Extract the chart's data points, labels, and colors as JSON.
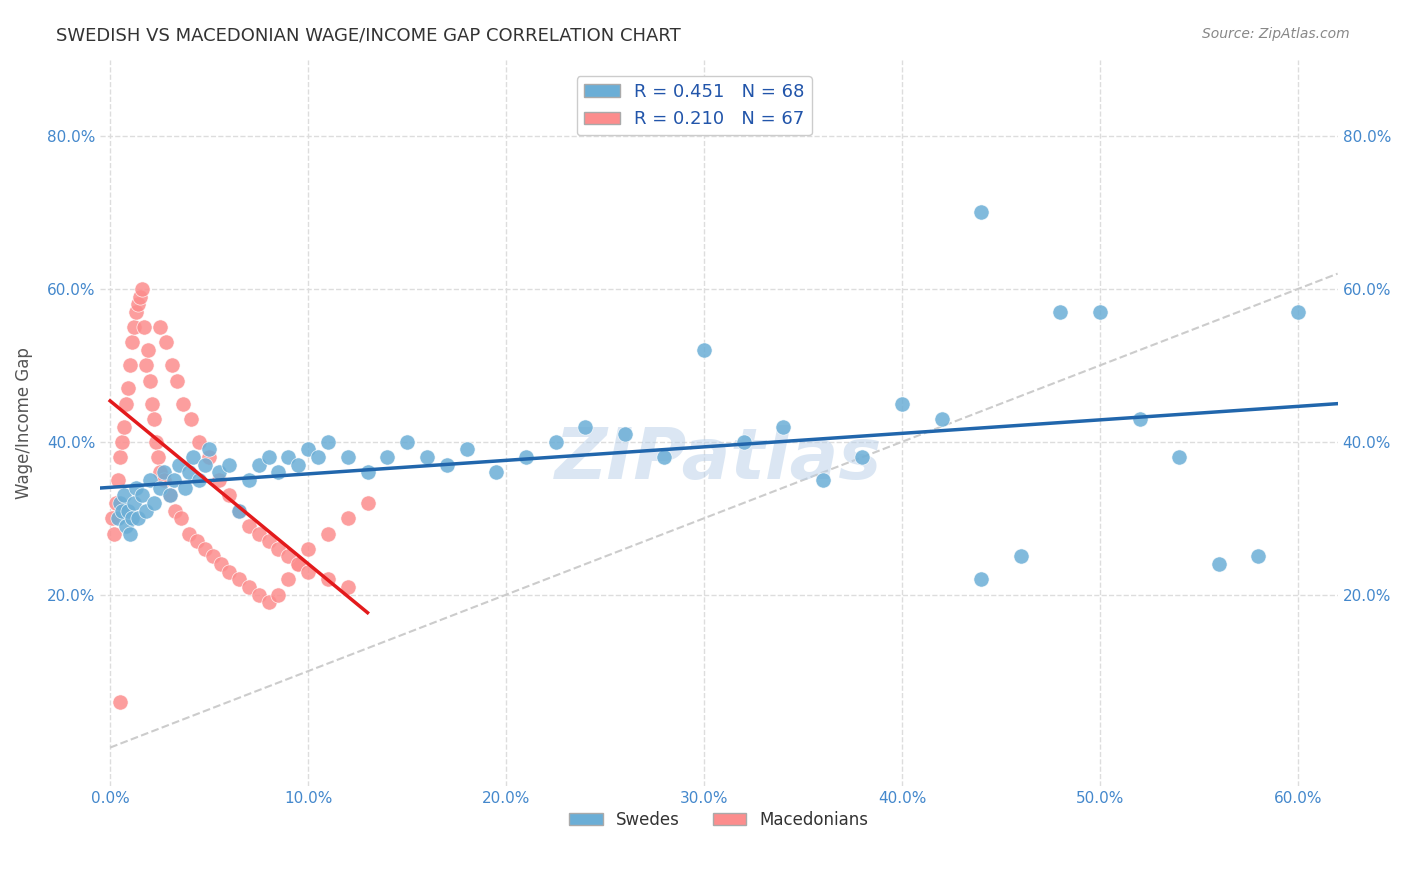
{
  "title": "SWEDISH VS MACEDONIAN WAGE/INCOME GAP CORRELATION CHART",
  "source": "Source: ZipAtlas.com",
  "ylabel": "Wage/Income Gap",
  "xlabel": "",
  "watermark": "ZIPatlas",
  "xlim": [
    -0.005,
    0.62
  ],
  "ylim": [
    -0.05,
    0.9
  ],
  "xticks": [
    0.0,
    0.1,
    0.2,
    0.3,
    0.4,
    0.5,
    0.6
  ],
  "xtick_labels": [
    "0.0%",
    "10.0%",
    "20.0%",
    "30.0%",
    "40.0%",
    "50.0%",
    "60.0%"
  ],
  "ytick_positions": [
    0.2,
    0.4,
    0.6,
    0.8
  ],
  "ytick_labels": [
    "20.0%",
    "40.0%",
    "60.0%",
    "80.0%"
  ],
  "swedes_color": "#6baed6",
  "macedonians_color": "#fc8d8d",
  "trend_blue_color": "#2166ac",
  "trend_pink_color": "#e31a1c",
  "diagonal_color": "#cccccc",
  "R_swedes": 0.451,
  "N_swedes": 68,
  "R_macedonians": 0.21,
  "N_macedonians": 67,
  "swedes_x": [
    0.004,
    0.005,
    0.006,
    0.007,
    0.008,
    0.009,
    0.01,
    0.011,
    0.012,
    0.013,
    0.014,
    0.016,
    0.018,
    0.02,
    0.022,
    0.025,
    0.027,
    0.03,
    0.032,
    0.035,
    0.038,
    0.04,
    0.042,
    0.045,
    0.048,
    0.05,
    0.055,
    0.06,
    0.065,
    0.07,
    0.075,
    0.08,
    0.085,
    0.09,
    0.095,
    0.1,
    0.105,
    0.11,
    0.12,
    0.13,
    0.14,
    0.15,
    0.16,
    0.17,
    0.18,
    0.195,
    0.21,
    0.225,
    0.24,
    0.26,
    0.28,
    0.3,
    0.32,
    0.34,
    0.36,
    0.38,
    0.4,
    0.42,
    0.44,
    0.46,
    0.48,
    0.5,
    0.52,
    0.54,
    0.56,
    0.58,
    0.6,
    0.44
  ],
  "swedes_y": [
    0.3,
    0.32,
    0.31,
    0.33,
    0.29,
    0.31,
    0.28,
    0.3,
    0.32,
    0.34,
    0.3,
    0.33,
    0.31,
    0.35,
    0.32,
    0.34,
    0.36,
    0.33,
    0.35,
    0.37,
    0.34,
    0.36,
    0.38,
    0.35,
    0.37,
    0.39,
    0.36,
    0.37,
    0.31,
    0.35,
    0.37,
    0.38,
    0.36,
    0.38,
    0.37,
    0.39,
    0.38,
    0.4,
    0.38,
    0.36,
    0.38,
    0.4,
    0.38,
    0.37,
    0.39,
    0.36,
    0.38,
    0.4,
    0.42,
    0.41,
    0.38,
    0.52,
    0.4,
    0.42,
    0.35,
    0.38,
    0.45,
    0.43,
    0.22,
    0.25,
    0.57,
    0.57,
    0.43,
    0.38,
    0.24,
    0.25,
    0.57,
    0.7
  ],
  "macedonians_x": [
    0.001,
    0.002,
    0.003,
    0.004,
    0.005,
    0.006,
    0.007,
    0.008,
    0.009,
    0.01,
    0.011,
    0.012,
    0.013,
    0.014,
    0.015,
    0.016,
    0.017,
    0.018,
    0.019,
    0.02,
    0.021,
    0.022,
    0.023,
    0.024,
    0.025,
    0.027,
    0.03,
    0.033,
    0.036,
    0.04,
    0.044,
    0.048,
    0.052,
    0.056,
    0.06,
    0.065,
    0.07,
    0.075,
    0.08,
    0.085,
    0.09,
    0.095,
    0.1,
    0.11,
    0.12,
    0.13,
    0.025,
    0.028,
    0.031,
    0.034,
    0.037,
    0.041,
    0.045,
    0.05,
    0.055,
    0.06,
    0.065,
    0.07,
    0.075,
    0.08,
    0.085,
    0.09,
    0.095,
    0.1,
    0.11,
    0.12,
    0.005
  ],
  "macedonians_y": [
    0.3,
    0.28,
    0.32,
    0.35,
    0.38,
    0.4,
    0.42,
    0.45,
    0.47,
    0.5,
    0.53,
    0.55,
    0.57,
    0.58,
    0.59,
    0.6,
    0.55,
    0.5,
    0.52,
    0.48,
    0.45,
    0.43,
    0.4,
    0.38,
    0.36,
    0.35,
    0.33,
    0.31,
    0.3,
    0.28,
    0.27,
    0.26,
    0.25,
    0.24,
    0.23,
    0.22,
    0.21,
    0.2,
    0.19,
    0.2,
    0.22,
    0.24,
    0.26,
    0.28,
    0.3,
    0.32,
    0.55,
    0.53,
    0.5,
    0.48,
    0.45,
    0.43,
    0.4,
    0.38,
    0.35,
    0.33,
    0.31,
    0.29,
    0.28,
    0.27,
    0.26,
    0.25,
    0.24,
    0.23,
    0.22,
    0.21,
    0.06
  ],
  "background_color": "#ffffff",
  "grid_color": "#dddddd",
  "title_color": "#333333",
  "axis_label_color": "#555555",
  "tick_color": "#4488cc",
  "legend_text_color": "#2255aa"
}
